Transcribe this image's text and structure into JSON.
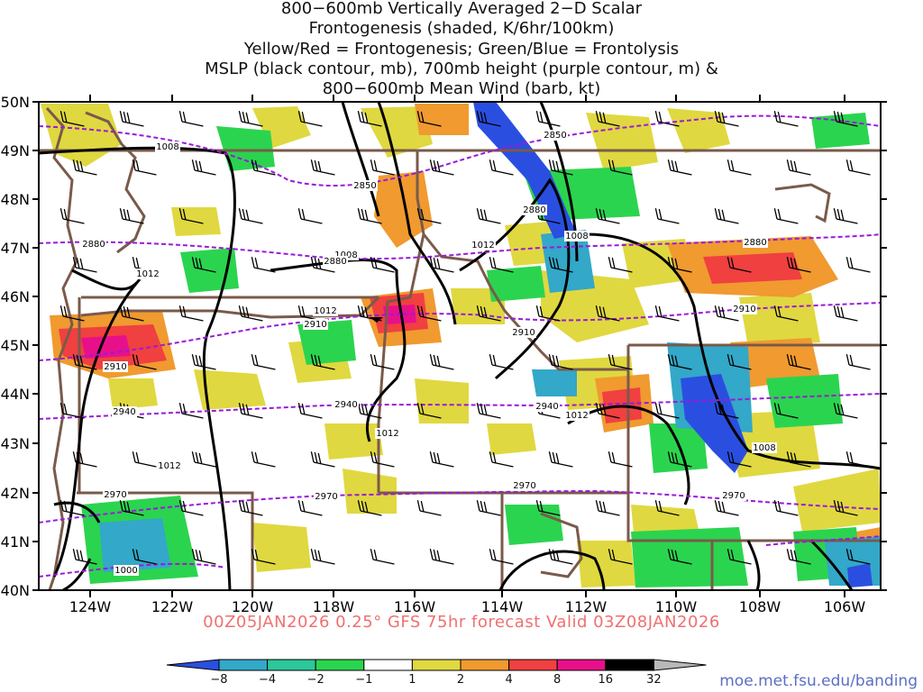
{
  "title_lines": [
    "800−600mb Vertically Averaged 2−D Scalar",
    "Frontogenesis (shaded, K/6hr/100km)",
    "Yellow/Red = Frontogenesis;  Green/Blue = Frontolysis",
    "MSLP (black contour, mb), 700mb height (purple contour, m) &",
    "800−600mb Mean Wind (barb, kt)"
  ],
  "lat_labels": [
    "50N",
    "49N",
    "48N",
    "47N",
    "46N",
    "45N",
    "44N",
    "43N",
    "42N",
    "41N",
    "40N"
  ],
  "lon_labels": [
    "124W",
    "122W",
    "120W",
    "118W",
    "116W",
    "114W",
    "112W",
    "110W",
    "108W",
    "106W"
  ],
  "mslp_labels": [
    "1008",
    "1012",
    "1008",
    "1012",
    "1008",
    "1012",
    "1012",
    "1012",
    "1008",
    "1012",
    "1000"
  ],
  "height_labels": [
    "2850",
    "2850",
    "2880",
    "2880",
    "2880",
    "2910",
    "2910",
    "2910",
    "2910",
    "2940",
    "2940",
    "2940",
    "2970",
    "2970",
    "2970",
    "2970",
    "2880"
  ],
  "footer": "00Z05JAN2026 0.25° GFS 75hr forecast Valid 03Z08JAN2026",
  "colorbar": {
    "labels": [
      "−8",
      "−4",
      "−2",
      "−1",
      "1",
      "2",
      "4",
      "8",
      "16",
      "32"
    ],
    "colors": [
      "#2a4fe0",
      "#33a8c8",
      "#2cc79a",
      "#2bd44f",
      "#ffffff",
      "#e0d840",
      "#f09a30",
      "#f04040",
      "#e8108a",
      "#000000",
      "#b8b8b8"
    ]
  },
  "url": "moe.met.fsu.edu/banding",
  "colors": {
    "mslp": "#000000",
    "height": "#9a1ad8",
    "borders": "#7a5a4a",
    "footer": "#f07070"
  }
}
